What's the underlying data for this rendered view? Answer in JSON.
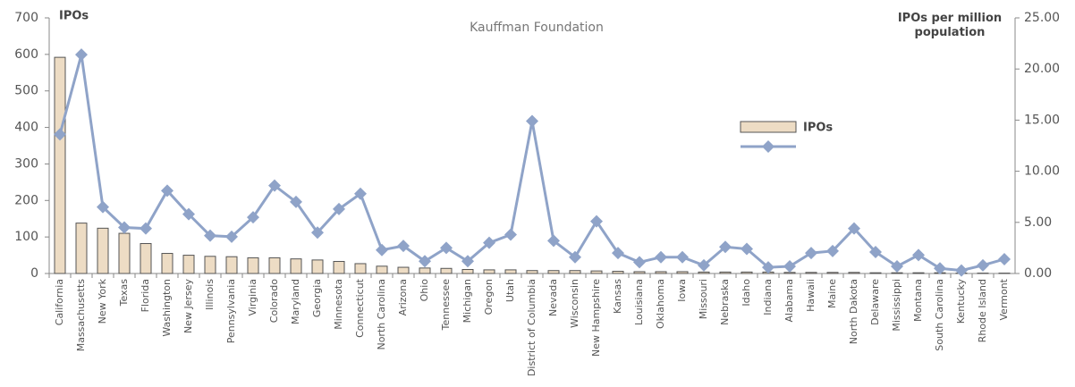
{
  "chart_data": {
    "type": "bar_line",
    "title": "Kauffman Foundation",
    "y_label": "IPOs",
    "y2_label": "IPOs per million population",
    "categories": [
      "California",
      "Massachusetts",
      "New York",
      "Texas",
      "Florida",
      "Washington",
      "New Jersey",
      "Illinois",
      "Pennsylvania",
      "Virginia",
      "Colorado",
      "Maryland",
      "Georgia",
      "Minnesota",
      "Connecticut",
      "North Carolina",
      "Arizona",
      "Ohio",
      "Tennessee",
      "Michigan",
      "Oregon",
      "Utah",
      "District of Columbia",
      "Nevada",
      "Wisconsin",
      "New Hampshire",
      "Kansas",
      "Louisiana",
      "Oklahoma",
      "Iowa",
      "Missouri",
      "Nebraska",
      "Idaho",
      "Indiana",
      "Alabama",
      "Hawaii",
      "Maine",
      "North Dakota",
      "Delaware",
      "Mississippi",
      "Montana",
      "South Carolina",
      "Kentucky",
      "Rhode Island",
      "Vermont"
    ],
    "series": [
      {
        "name": "IPOs",
        "color": "#eddcc4",
        "values": [
          592,
          138,
          124,
          110,
          82,
          55,
          50,
          47,
          46,
          43,
          43,
          40,
          37,
          33,
          27,
          20,
          17,
          15,
          14,
          11,
          10,
          10,
          8,
          8,
          8,
          7,
          6,
          5,
          5,
          5,
          4,
          4,
          4,
          4,
          3,
          3,
          3,
          3,
          2,
          2,
          2,
          2,
          1,
          1,
          1
        ]
      },
      {
        "color": "#8fa3c8",
        "axis": "y2",
        "values": [
          13.6,
          21.4,
          6.5,
          4.5,
          4.4,
          8.1,
          5.8,
          3.7,
          3.6,
          5.5,
          8.6,
          7.0,
          4.0,
          6.3,
          7.8,
          2.3,
          2.7,
          1.2,
          2.5,
          1.2,
          3.0,
          3.8,
          14.9,
          3.2,
          1.6,
          5.1,
          2.0,
          1.1,
          1.6,
          1.6,
          0.8,
          2.6,
          2.4,
          0.6,
          0.7,
          2.0,
          2.2,
          4.4,
          2.1,
          0.7,
          1.8,
          0.5,
          0.3,
          0.8,
          1.4
        ]
      }
    ],
    "ylim": [
      0,
      700
    ],
    "yticks": [
      0,
      100,
      200,
      300,
      400,
      500,
      600,
      700
    ],
    "y2lim": [
      0,
      25
    ],
    "y2ticks": [
      {
        "value": 0,
        "label": "0.00"
      },
      {
        "value": 5,
        "label": "5.00"
      },
      {
        "value": 10,
        "label": "10.00"
      },
      {
        "value": 15,
        "label": "15.00"
      },
      {
        "value": 20,
        "label": "20.00"
      },
      {
        "value": 25,
        "label": "25.00"
      }
    ],
    "legend": "upper right"
  }
}
